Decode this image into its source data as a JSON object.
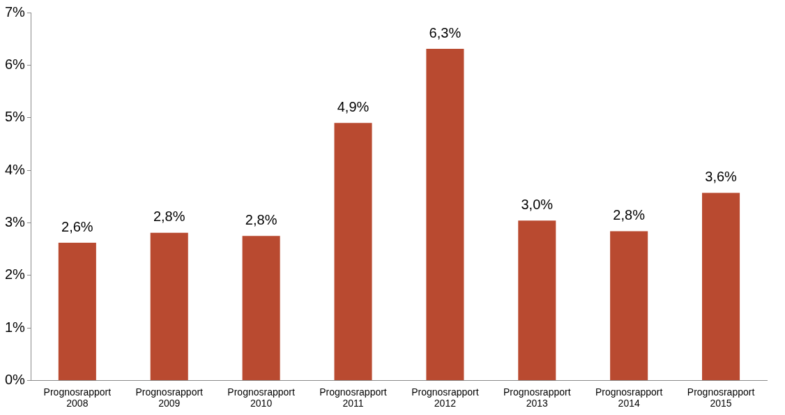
{
  "chart_data": {
    "type": "bar",
    "categories": [
      "Prognosrapport 2008",
      "Prognosrapport 2009",
      "Prognosrapport 2010",
      "Prognosrapport 2011",
      "Prognosrapport 2012",
      "Prognosrapport 2013",
      "Prognosrapport 2014",
      "Prognosrapport 2015"
    ],
    "values": [
      2.62,
      2.81,
      2.75,
      4.9,
      6.31,
      3.04,
      2.84,
      3.57
    ],
    "value_labels": [
      "2,6%",
      "2,8%",
      "2,8%",
      "4,9%",
      "6,3%",
      "3,0%",
      "2,8%",
      "3,6%"
    ],
    "color": "#b94a30",
    "ylim": [
      0,
      7
    ],
    "yticks": [
      {
        "value": 0,
        "label": "0%"
      },
      {
        "value": 1,
        "label": "1%"
      },
      {
        "value": 2,
        "label": "2%"
      },
      {
        "value": 3,
        "label": "3%"
      },
      {
        "value": 4,
        "label": "4%"
      },
      {
        "value": 5,
        "label": "5%"
      },
      {
        "value": 6,
        "label": "6%"
      },
      {
        "value": 7,
        "label": "7%"
      }
    ],
    "grid": false,
    "legend": false
  }
}
